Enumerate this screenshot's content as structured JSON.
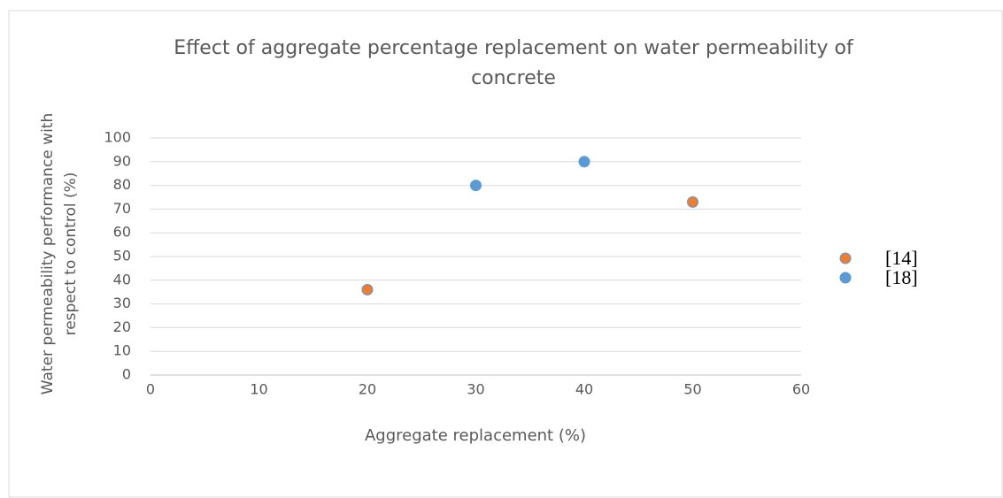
{
  "chart_data": {
    "type": "scatter",
    "title": "Effect of aggregate percentage replacement on water permeability of concrete",
    "x_label": "Aggregate replacement (%)",
    "y_label": "Water permeability performance with respect to control (%)",
    "series": [
      {
        "name": "[14]",
        "color": "#ed7d31",
        "x": [
          20,
          50
        ],
        "values": [
          36,
          73
        ]
      },
      {
        "name": "[18]",
        "color": "#5b9bd5",
        "x": [
          30,
          40
        ],
        "values": [
          80,
          90
        ]
      }
    ],
    "xlim": [
      0,
      60
    ],
    "xticks": [
      0,
      10,
      20,
      30,
      40,
      50,
      60
    ],
    "ylim": [
      0,
      100
    ],
    "yticks": [
      0,
      10,
      20,
      30,
      40,
      50,
      60,
      70,
      80,
      90,
      100
    ],
    "grid": true,
    "legend": "right"
  }
}
